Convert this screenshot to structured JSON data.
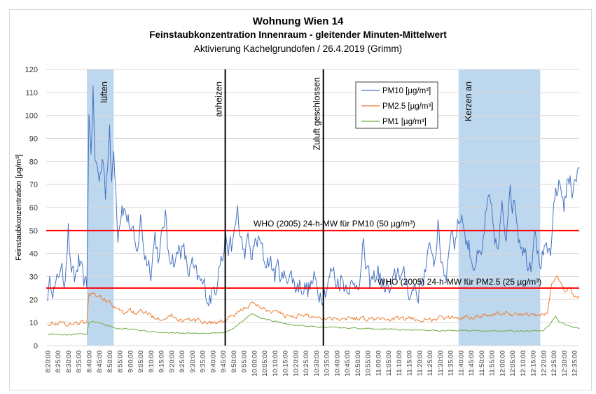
{
  "chart_data": {
    "type": "line",
    "title": "Wohnung Wien 14",
    "subtitle": "Feinstaubkonzentration Innenraum - gleitender Minuten-Mittelwert",
    "subtitle2": "Aktivierung Kachelgrundofen  / 26.4.2019 (Grimm)",
    "xlabel": "",
    "ylabel": "Feinstaubkonzentration [µg/m³]",
    "ylim": [
      0,
      120
    ],
    "yticks": [
      "0",
      "10",
      "20",
      "30",
      "40",
      "50",
      "60",
      "70",
      "80",
      "90",
      "100",
      "110",
      "120"
    ],
    "x_unit": "minutes after 8:20:00",
    "xlim": [
      0,
      257.5
    ],
    "xticks": [
      "8:20:00",
      "8:25:00",
      "8:30:00",
      "8:35:00",
      "8:40:00",
      "8:45:00",
      "8:50:00",
      "8:55:00",
      "9:00:00",
      "9:05:00",
      "9:10:00",
      "9:15:00",
      "9:20:00",
      "9:25:00",
      "9:30:00",
      "9:35:00",
      "9:40:00",
      "9:45:00",
      "9:50:00",
      "9:55:00",
      "10:00:00",
      "10:05:00",
      "10:10:00",
      "10:15:00",
      "10:20:00",
      "10:25:00",
      "10:30:00",
      "10:35:00",
      "10:40:00",
      "10:45:00",
      "10:50:00",
      "10:55:00",
      "11:00:00",
      "11:05:00",
      "11:10:00",
      "11:15:00",
      "11:20:00",
      "11:25:00",
      "11:30:00",
      "11:35:00",
      "11:40:00",
      "11:45:00",
      "11:50:00",
      "11:55:00",
      "12:00:00",
      "12:05:00",
      "12:10:00",
      "12:15:00",
      "12:20:00",
      "12:25:00",
      "12:30:00",
      "12:35:00"
    ],
    "grid": true,
    "legend_position": "top-center-right",
    "series": [
      {
        "name": "PM10 [µg/m³]",
        "color": "#4472c4",
        "noise": 4.5,
        "points": [
          [
            0,
            23
          ],
          [
            2,
            28
          ],
          [
            4,
            24
          ],
          [
            6,
            35
          ],
          [
            8,
            27
          ],
          [
            10,
            52
          ],
          [
            11,
            35
          ],
          [
            13,
            27
          ],
          [
            15,
            37
          ],
          [
            17,
            28
          ],
          [
            19,
            24
          ],
          [
            20,
            100
          ],
          [
            21,
            85
          ],
          [
            22,
            110
          ],
          [
            23,
            80
          ],
          [
            25,
            72
          ],
          [
            27,
            82
          ],
          [
            28,
            68
          ],
          [
            30,
            92
          ],
          [
            31,
            70
          ],
          [
            32,
            88
          ],
          [
            33,
            70
          ],
          [
            34,
            50
          ],
          [
            36,
            62
          ],
          [
            38,
            57
          ],
          [
            40,
            52
          ],
          [
            42,
            44
          ],
          [
            43,
            38
          ],
          [
            45,
            55
          ],
          [
            47,
            40
          ],
          [
            50,
            34
          ],
          [
            52,
            48
          ],
          [
            54,
            37
          ],
          [
            57,
            58
          ],
          [
            58,
            42
          ],
          [
            60,
            40
          ],
          [
            62,
            36
          ],
          [
            64,
            44
          ],
          [
            66,
            40
          ],
          [
            68,
            32
          ],
          [
            70,
            34
          ],
          [
            72,
            29
          ],
          [
            74,
            27
          ],
          [
            76,
            25
          ],
          [
            78,
            21
          ],
          [
            80,
            23
          ],
          [
            82,
            28
          ],
          [
            83,
            40
          ],
          [
            85,
            38
          ],
          [
            86,
            48
          ],
          [
            88,
            42
          ],
          [
            90,
            44
          ],
          [
            92,
            60
          ],
          [
            93,
            48
          ],
          [
            95,
            40
          ],
          [
            97,
            44
          ],
          [
            99,
            38
          ],
          [
            101,
            46
          ],
          [
            103,
            44
          ],
          [
            105,
            36
          ],
          [
            107,
            38
          ],
          [
            110,
            31
          ],
          [
            112,
            34
          ],
          [
            114,
            28
          ],
          [
            116,
            32
          ],
          [
            118,
            30
          ],
          [
            120,
            26
          ],
          [
            123,
            27
          ],
          [
            126,
            24
          ],
          [
            129,
            28
          ],
          [
            131,
            24
          ],
          [
            133,
            24
          ],
          [
            135,
            26
          ],
          [
            138,
            33
          ],
          [
            140,
            27
          ],
          [
            142,
            30
          ],
          [
            144,
            26
          ],
          [
            146,
            28
          ],
          [
            148,
            24
          ],
          [
            150,
            29
          ],
          [
            152,
            33
          ],
          [
            153,
            45
          ],
          [
            154,
            34
          ],
          [
            156,
            26
          ],
          [
            158,
            29
          ],
          [
            160,
            33
          ],
          [
            162,
            25
          ],
          [
            164,
            26
          ],
          [
            166,
            22
          ],
          [
            168,
            28
          ],
          [
            170,
            34
          ],
          [
            172,
            29
          ],
          [
            174,
            27
          ],
          [
            176,
            22
          ],
          [
            178,
            27
          ],
          [
            179,
            21
          ],
          [
            181,
            29
          ],
          [
            183,
            33
          ],
          [
            186,
            44
          ],
          [
            187,
            35
          ],
          [
            189,
            52
          ],
          [
            190,
            40
          ],
          [
            193,
            30
          ],
          [
            195,
            52
          ],
          [
            197,
            45
          ],
          [
            199,
            54
          ],
          [
            201,
            58
          ],
          [
            202,
            47
          ],
          [
            204,
            43
          ],
          [
            206,
            36
          ],
          [
            208,
            38
          ],
          [
            210,
            36
          ],
          [
            212,
            55
          ],
          [
            214,
            62
          ],
          [
            216,
            50
          ],
          [
            218,
            40
          ],
          [
            220,
            58
          ],
          [
            222,
            48
          ],
          [
            224,
            76
          ],
          [
            225,
            55
          ],
          [
            226,
            66
          ],
          [
            228,
            49
          ],
          [
            230,
            44
          ],
          [
            232,
            38
          ],
          [
            234,
            36
          ],
          [
            236,
            55
          ],
          [
            238,
            35
          ],
          [
            240,
            40
          ],
          [
            242,
            38
          ],
          [
            244,
            42
          ],
          [
            245,
            56
          ],
          [
            246,
            66
          ],
          [
            248,
            70
          ],
          [
            250,
            62
          ],
          [
            252,
            72
          ],
          [
            254,
            68
          ],
          [
            255,
            74
          ],
          [
            257.4,
            76
          ]
        ]
      },
      {
        "name": "PM2.5 [µg/m³]",
        "color": "#ed7d31",
        "noise": 0.9,
        "points": [
          [
            0,
            10
          ],
          [
            10,
            9.5
          ],
          [
            19,
            10
          ],
          [
            20,
            22
          ],
          [
            22,
            23
          ],
          [
            25,
            21
          ],
          [
            28,
            20
          ],
          [
            30,
            19
          ],
          [
            32,
            16
          ],
          [
            34,
            16
          ],
          [
            37,
            14
          ],
          [
            40,
            16
          ],
          [
            43,
            13
          ],
          [
            46,
            15
          ],
          [
            50,
            13
          ],
          [
            55,
            12
          ],
          [
            60,
            13
          ],
          [
            65,
            11
          ],
          [
            70,
            11
          ],
          [
            75,
            10.5
          ],
          [
            80,
            10
          ],
          [
            85,
            10.5
          ],
          [
            88,
            12
          ],
          [
            92,
            14
          ],
          [
            96,
            17
          ],
          [
            99,
            18
          ],
          [
            103,
            17
          ],
          [
            107,
            15
          ],
          [
            110,
            15
          ],
          [
            115,
            13
          ],
          [
            120,
            13
          ],
          [
            125,
            13
          ],
          [
            130,
            12.5
          ],
          [
            135,
            12
          ],
          [
            140,
            12
          ],
          [
            150,
            12
          ],
          [
            160,
            11.5
          ],
          [
            170,
            11.5
          ],
          [
            180,
            11.5
          ],
          [
            185,
            11
          ],
          [
            190,
            12
          ],
          [
            195,
            12
          ],
          [
            200,
            12.5
          ],
          [
            210,
            13
          ],
          [
            220,
            14
          ],
          [
            230,
            13.5
          ],
          [
            238,
            13
          ],
          [
            242,
            14
          ],
          [
            244,
            27
          ],
          [
            246,
            29
          ],
          [
            247,
            30
          ],
          [
            249,
            26
          ],
          [
            251,
            23
          ],
          [
            253,
            26
          ],
          [
            255,
            21
          ],
          [
            257.4,
            21
          ]
        ]
      },
      {
        "name": "PM1 [µg/m³]",
        "color": "#70ad47",
        "noise": 0.25,
        "points": [
          [
            0,
            5
          ],
          [
            10,
            4.8
          ],
          [
            19,
            5
          ],
          [
            20,
            10
          ],
          [
            22,
            10.5
          ],
          [
            26,
            9.5
          ],
          [
            30,
            8.5
          ],
          [
            33,
            7.5
          ],
          [
            38,
            7.5
          ],
          [
            42,
            7
          ],
          [
            50,
            6
          ],
          [
            60,
            5.5
          ],
          [
            70,
            5.3
          ],
          [
            85,
            5.5
          ],
          [
            88,
            6.5
          ],
          [
            92,
            9
          ],
          [
            96,
            12
          ],
          [
            99,
            14
          ],
          [
            103,
            12
          ],
          [
            108,
            11
          ],
          [
            115,
            9.5
          ],
          [
            125,
            8.5
          ],
          [
            135,
            8
          ],
          [
            150,
            7.5
          ],
          [
            170,
            7
          ],
          [
            190,
            6.5
          ],
          [
            210,
            6.5
          ],
          [
            230,
            6.3
          ],
          [
            240,
            6.5
          ],
          [
            243,
            9
          ],
          [
            246,
            12.5
          ],
          [
            248,
            10
          ],
          [
            252,
            9
          ],
          [
            255,
            8
          ],
          [
            257.4,
            7.5
          ]
        ]
      }
    ],
    "reference_lines": [
      {
        "value": 50,
        "label": "WHO (2005) 24-h-MW für PM10 (50 µg/m³)",
        "color": "#ff0000"
      },
      {
        "value": 25,
        "label": "WHO (2005) 24-h-MW für PM2.5 (25 µg/m³)",
        "color": "#ff0000"
      }
    ],
    "shaded_regions": [
      {
        "start": 19,
        "end": 32,
        "label": "lüften",
        "color": "#bdd7ee"
      },
      {
        "start": 199,
        "end": 238.5,
        "label": "Kerzen an",
        "color": "#bdd7ee"
      }
    ],
    "event_lines": [
      {
        "at": 86,
        "label": "anheizen",
        "color": "#000000"
      },
      {
        "at": 133.5,
        "label": "Zuluft geschlossen",
        "color": "#000000"
      }
    ]
  }
}
